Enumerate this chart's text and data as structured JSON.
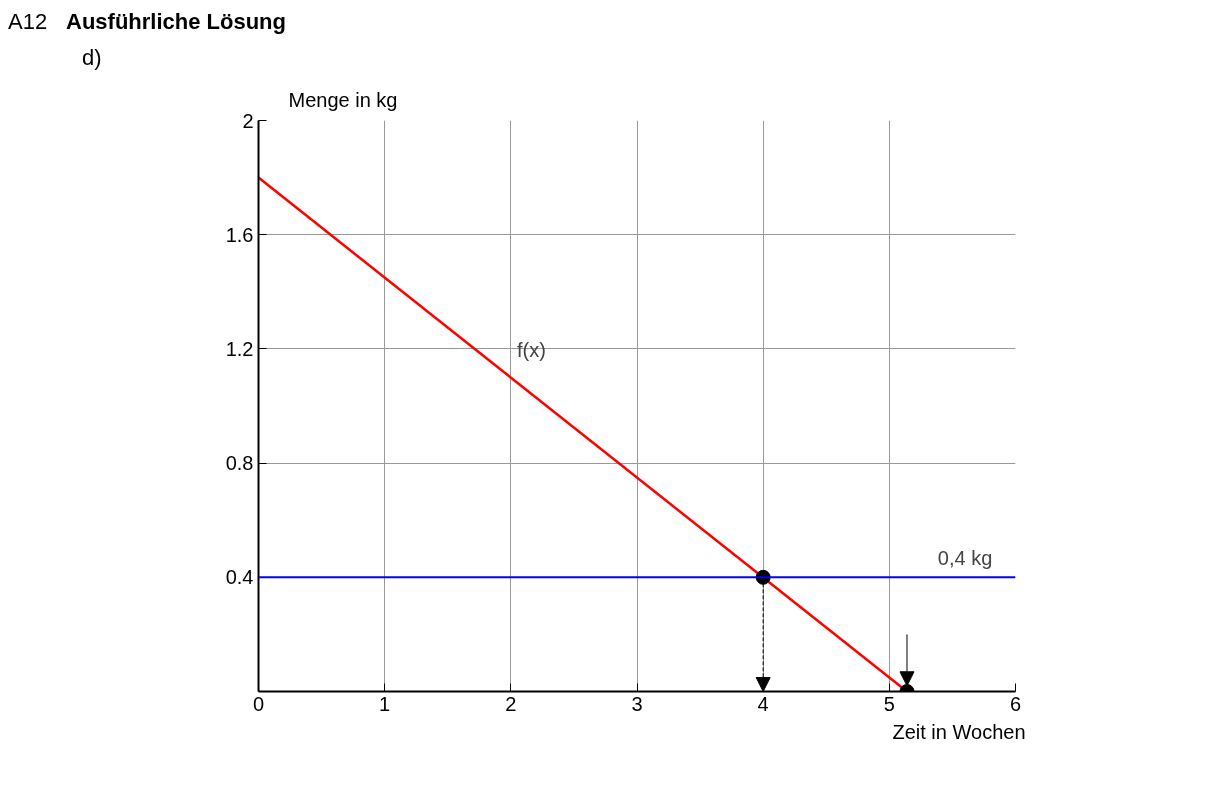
{
  "chart_data": {
    "type": "line",
    "title": "Ausführliche Lösung",
    "xlabel": "Zeit in Wochen",
    "ylabel": "Menge in kg",
    "annotations": [
      "A12",
      "d)"
    ],
    "series": [
      {
        "name": "f(x)",
        "color": "#ff0000",
        "x": [
          0,
          5.14
        ],
        "values": [
          1.8,
          0
        ]
      },
      {
        "type": "scatter",
        "color": "#000000",
        "x": [
          4,
          5.14
        ],
        "values": [
          0.4,
          0
        ],
        "marker": "circle"
      }
    ],
    "ref_lines": [
      {
        "axis": "y",
        "value": 0.4,
        "label": "0,4 kg",
        "color": "#0000ff"
      }
    ],
    "xlim": [
      0,
      6
    ],
    "ylim": [
      0,
      2
    ],
    "xticks": [
      0,
      1,
      2,
      3,
      4,
      5,
      6
    ],
    "yticks": [
      0.4,
      0.8,
      1.2,
      1.6,
      2
    ],
    "grid": true
  }
}
